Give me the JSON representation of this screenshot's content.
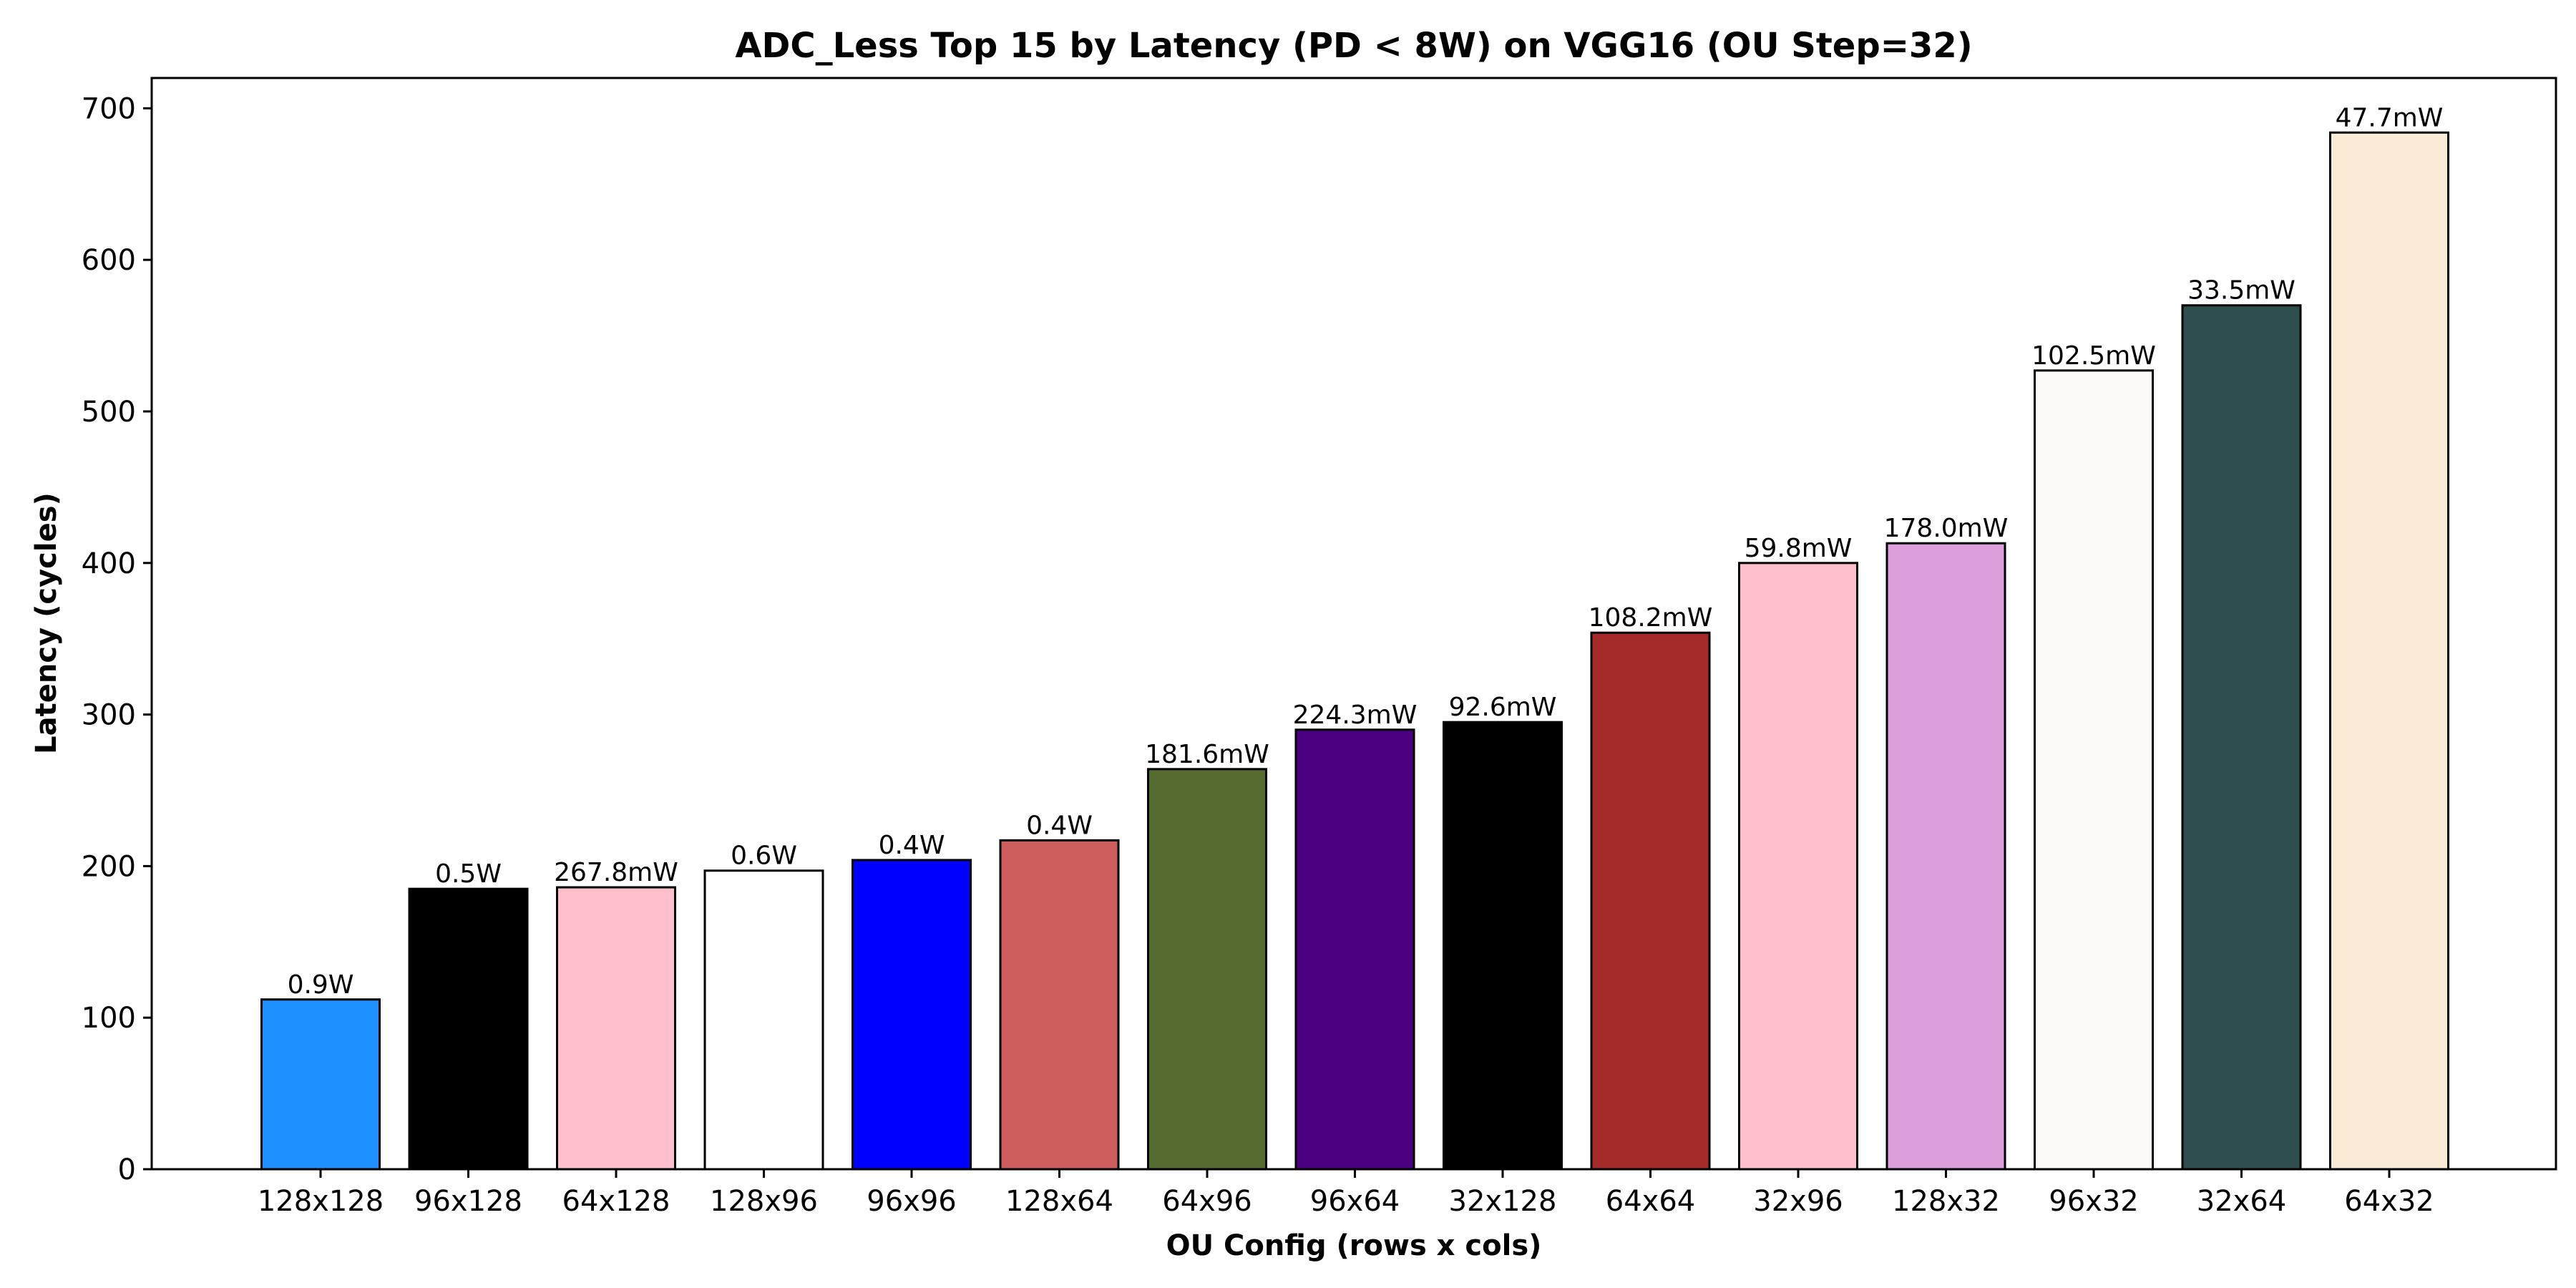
{
  "chart_data": {
    "type": "bar",
    "title": "ADC_Less Top 15 by Latency (PD < 8W) on VGG16 (OU Step=32)",
    "xlabel": "OU Config (rows x cols)",
    "ylabel": "Latency (cycles)",
    "ylim": [
      0,
      720
    ],
    "yticks": [
      0,
      100,
      200,
      300,
      400,
      500,
      600,
      700
    ],
    "grid": false,
    "categories": [
      "128x128",
      "96x128",
      "64x128",
      "128x96",
      "96x96",
      "128x64",
      "64x96",
      "96x64",
      "32x128",
      "64x64",
      "32x96",
      "128x32",
      "96x32",
      "32x64",
      "64x32"
    ],
    "values": [
      112,
      185,
      186,
      197,
      204,
      217,
      264,
      290,
      295,
      354,
      400,
      413,
      527,
      570,
      684
    ],
    "bar_labels": [
      "0.9W",
      "0.5W",
      "267.8mW",
      "0.6W",
      "0.4W",
      "0.4W",
      "181.6mW",
      "224.3mW",
      "92.6mW",
      "108.2mW",
      "59.8mW",
      "178.0mW",
      "102.5mW",
      "33.5mW",
      "47.7mW"
    ],
    "bar_colors": [
      "#1e90ff",
      "#000000",
      "#ffc0cb",
      "#ffffff",
      "#0000ff",
      "#cd5c5c",
      "#556b2f",
      "#4b0082",
      "#000000",
      "#a52a2a",
      "#ffc0cb",
      "#dda0dd",
      "#fffafa",
      "#2f4f4f",
      "#faebd7"
    ],
    "edge_color": "#000000"
  }
}
